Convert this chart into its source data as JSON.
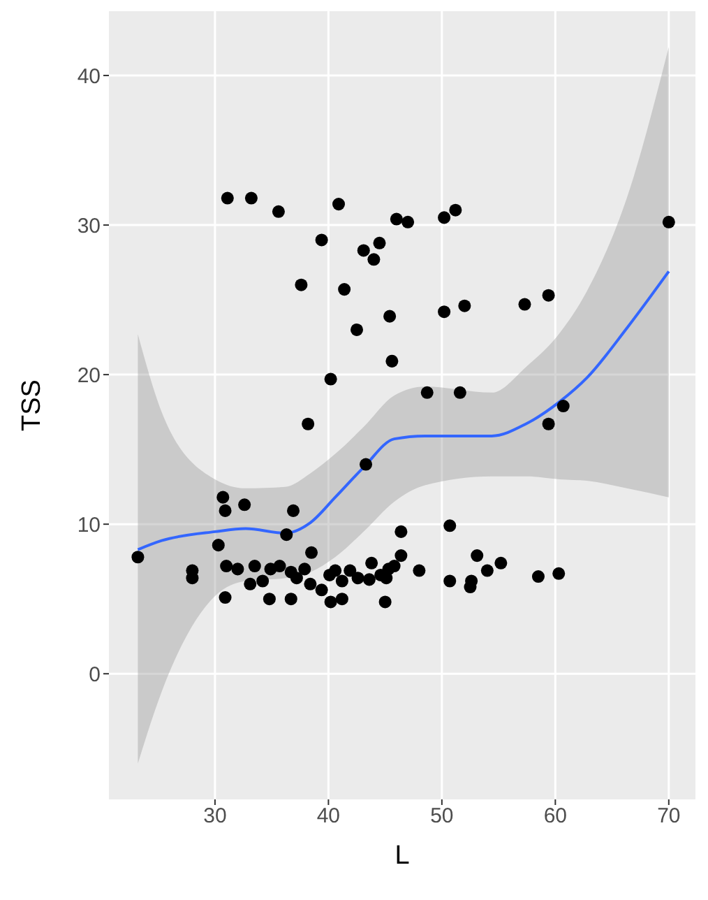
{
  "chart_data": {
    "type": "scatter",
    "xlabel": "L",
    "ylabel": "TSS",
    "xlim": [
      20.65,
      72.35
    ],
    "xticks": [
      30,
      40,
      50,
      60,
      70
    ],
    "ylim": [
      -8.4,
      44.3
    ],
    "yticks": [
      0,
      10,
      20,
      30,
      40
    ],
    "grid": true,
    "series": [
      {
        "color": "#000000",
        "marker": "circle",
        "x": [
          23.2,
          31.1,
          33.2,
          35.6,
          40.9,
          39.4,
          37.6,
          41.4,
          43.1,
          44.0,
          44.5,
          46.0,
          47.0,
          50.2,
          51.2,
          42.5,
          45.4,
          45.6,
          40.2,
          38.2,
          50.2,
          52.0,
          57.3,
          59.4,
          70.0,
          48.7,
          51.6,
          59.4,
          60.7,
          43.3,
          30.7,
          30.9,
          32.6,
          36.9,
          36.3,
          30.3,
          38.5,
          46.4,
          50.7,
          46.4,
          53.1,
          55.2,
          54.0,
          48.0,
          58.5,
          60.3,
          50.7,
          52.6,
          52.5,
          28.0,
          28.0,
          30.9,
          34.8,
          36.7,
          40.2,
          41.2,
          45.0,
          31.0,
          32.0,
          33.1,
          33.5,
          34.2,
          34.9,
          35.7,
          36.7,
          37.2,
          37.9,
          38.4,
          39.4,
          40.1,
          40.6,
          41.2,
          41.9,
          42.6,
          43.6,
          43.8,
          44.6,
          45.3,
          45.8,
          45.1
        ],
        "values": [
          7.8,
          31.8,
          31.8,
          30.9,
          31.4,
          29.0,
          26.0,
          25.7,
          28.3,
          27.7,
          28.8,
          30.4,
          30.2,
          30.5,
          31.0,
          23.0,
          23.9,
          20.9,
          19.7,
          16.7,
          24.2,
          24.6,
          24.7,
          25.3,
          30.2,
          18.8,
          18.8,
          16.7,
          17.9,
          14.0,
          11.8,
          10.9,
          11.3,
          10.9,
          9.3,
          8.6,
          8.1,
          9.5,
          9.9,
          7.9,
          7.9,
          7.4,
          6.9,
          6.9,
          6.5,
          6.7,
          6.2,
          6.2,
          5.8,
          6.9,
          6.4,
          5.1,
          5.0,
          5.0,
          4.8,
          5.0,
          4.8,
          7.2,
          7.0,
          6.0,
          7.2,
          6.2,
          7.0,
          7.2,
          6.8,
          6.4,
          7.0,
          6.0,
          5.6,
          6.6,
          6.9,
          6.2,
          6.9,
          6.4,
          6.3,
          7.4,
          6.6,
          7.0,
          7.2,
          6.4
        ]
      },
      {
        "type": "line",
        "color": "#3366ff",
        "x": [
          23.2,
          25.3,
          30,
          32.7,
          36.2,
          38.4,
          40.6,
          43.1,
          45.8,
          48.5,
          54.4,
          57.4,
          60.4,
          62.8,
          66.3,
          70
        ],
        "values": [
          8.3,
          8.9,
          9.5,
          9.7,
          9.4,
          10.1,
          11.8,
          13.8,
          15.7,
          15.9,
          15.9,
          16.7,
          18.2,
          19.8,
          23.1,
          26.9
        ],
        "lower": [
          -6.0,
          -1.2,
          5.2,
          6.2,
          6.4,
          6.8,
          7.8,
          9.5,
          11.5,
          12.6,
          13.2,
          13.2,
          13.0,
          12.9,
          12.4,
          11.8
        ],
        "upper": [
          22.7,
          17.5,
          13.0,
          12.4,
          12.5,
          13.4,
          14.7,
          16.5,
          18.6,
          19.2,
          18.8,
          20.5,
          22.8,
          25.6,
          31.8,
          41.9
        ]
      }
    ]
  }
}
